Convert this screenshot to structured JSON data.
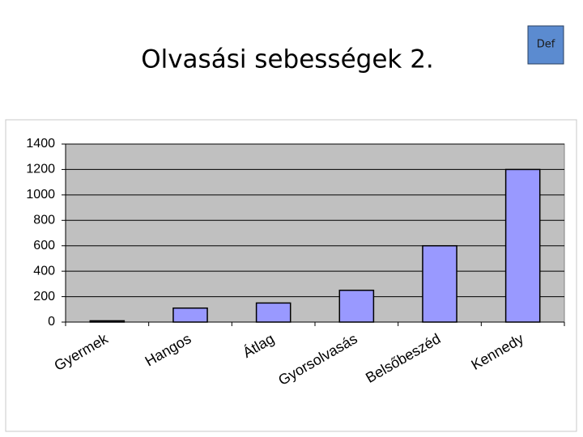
{
  "badge": "Def",
  "chart_data": {
    "type": "bar",
    "title": "Olvasási sebességek 2.",
    "categories": [
      "Gyermek",
      "Hangos",
      "Átlag",
      "Gyorsolvasás",
      "Belsőbeszéd",
      "Kennedy"
    ],
    "values": [
      10,
      110,
      150,
      250,
      600,
      1200
    ],
    "color": "#9999ff",
    "ylim": [
      0,
      1400
    ],
    "yticks": [
      0,
      200,
      400,
      600,
      800,
      1000,
      1200,
      1400
    ],
    "grid": true
  }
}
